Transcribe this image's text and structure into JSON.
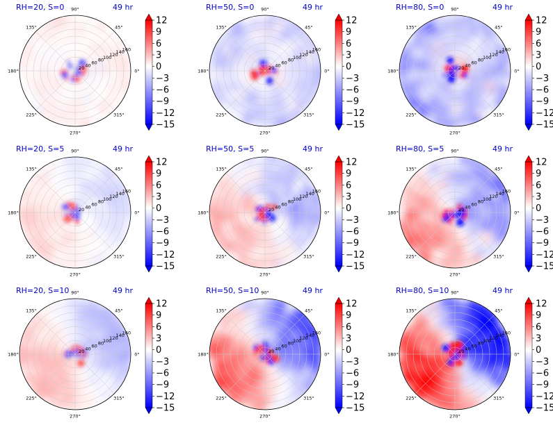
{
  "chart_data": {
    "type": "heatmap",
    "projection": "polar",
    "layout": {
      "rows": 3,
      "cols": 3
    },
    "colormap": "bwr",
    "colorbar": {
      "vmin": -15,
      "vmax": 12,
      "extend": "both",
      "ticks": [
        "12",
        "9",
        "6",
        "3",
        "0",
        "−3",
        "−6",
        "−9",
        "−12",
        "−15"
      ]
    },
    "angular_ticks": [
      "0°",
      "45°",
      "90°",
      "135°",
      "180°",
      "225°",
      "270°",
      "315°"
    ],
    "radial_ticks": [
      "20",
      "40",
      "60",
      "80",
      "100",
      "120",
      "140",
      "160"
    ],
    "radial_label_angle_deg": 22.5,
    "grid": true,
    "panels": [
      {
        "id": "p11",
        "title": "RH=20, S=0",
        "time": "49 hr",
        "rh": 20,
        "s": 0
      },
      {
        "id": "p12",
        "title": "RH=50, S=0",
        "time": "49 hr",
        "rh": 50,
        "s": 0
      },
      {
        "id": "p13",
        "title": "RH=80, S=0",
        "time": "49 hr",
        "rh": 80,
        "s": 0
      },
      {
        "id": "p21",
        "title": "RH=20, S=5",
        "time": "49 hr",
        "rh": 20,
        "s": 5
      },
      {
        "id": "p22",
        "title": "RH=50, S=5",
        "time": "49 hr",
        "rh": 50,
        "s": 5
      },
      {
        "id": "p23",
        "title": "RH=80, S=5",
        "time": "49 hr",
        "rh": 80,
        "s": 5
      },
      {
        "id": "p31",
        "title": "RH=20, S=10",
        "time": "49 hr",
        "rh": 20,
        "s": 10
      },
      {
        "id": "p32",
        "title": "RH=50, S=10",
        "time": "49 hr",
        "rh": 50,
        "s": 10
      },
      {
        "id": "p33",
        "title": "RH=80, S=10",
        "time": "49 hr",
        "rh": 80,
        "s": 10
      }
    ]
  }
}
